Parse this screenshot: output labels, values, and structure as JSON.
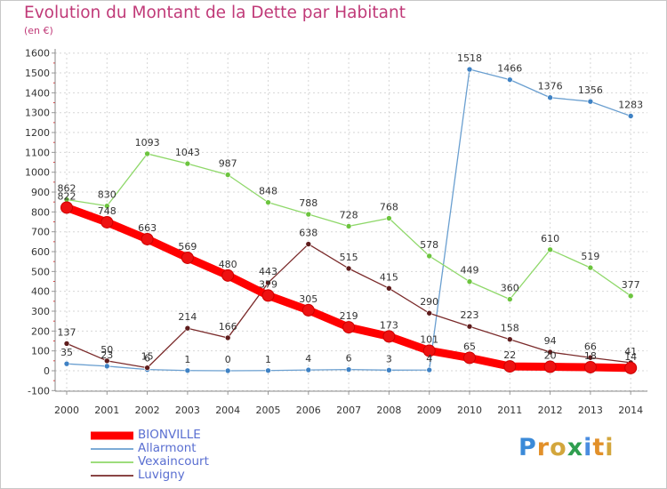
{
  "title": "Evolution du Montant de la Dette par Habitant",
  "subtitle": "(en €)",
  "logo": {
    "letters": [
      "P",
      "r",
      "o",
      "x",
      "i",
      "t",
      "i"
    ],
    "colors": [
      "#3b8ad8",
      "#e2902a",
      "#d3a63c",
      "#2f9e4f",
      "#4a8de0",
      "#e2902a",
      "#d3a63c"
    ]
  },
  "chart_data": {
    "type": "line",
    "categories": [
      "2000",
      "2001",
      "2002",
      "2003",
      "2004",
      "2005",
      "2006",
      "2007",
      "2008",
      "2009",
      "2010",
      "2011",
      "2012",
      "2013",
      "2014"
    ],
    "y_ticks": [
      -100,
      0,
      100,
      200,
      300,
      400,
      500,
      600,
      700,
      800,
      900,
      1000,
      1100,
      1200,
      1300,
      1400,
      1500,
      1600
    ],
    "ylim": [
      -100,
      1600
    ],
    "grid": true,
    "legend_position": "bottom-left",
    "series": [
      {
        "name": "BIONVILLE",
        "color": "#ff0000",
        "marker_color": "#ee1111",
        "values": [
          822,
          748,
          663,
          569,
          480,
          379,
          305,
          219,
          173,
          101,
          65,
          22,
          20,
          18,
          14
        ],
        "labels": [
          "822",
          "748",
          "663",
          "569",
          "480",
          "379",
          "305",
          "219",
          "173",
          "101",
          "65",
          "22",
          "20",
          "18",
          "14"
        ]
      },
      {
        "name": "Allarmont",
        "color": "#6a9fd0",
        "marker_color": "#3f82c4",
        "values": [
          35,
          23,
          6,
          1,
          0,
          1,
          4,
          6,
          3,
          4,
          1518,
          1466,
          1376,
          1356,
          1283
        ],
        "labels": [
          "35",
          "23",
          "6",
          "1",
          "0",
          "1",
          "4",
          "6",
          "3",
          "4",
          "1518",
          "1466",
          "1376",
          "1356",
          "1283"
        ]
      },
      {
        "name": "Vexaincourt",
        "color": "#8fd86a",
        "marker_color": "#6cc43e",
        "values": [
          862,
          830,
          1093,
          1043,
          987,
          848,
          788,
          728,
          768,
          578,
          449,
          360,
          610,
          519,
          377
        ],
        "labels": [
          "862",
          "830",
          "1093",
          "1043",
          "987",
          "848",
          "788",
          "728",
          "768",
          "578",
          "449",
          "360",
          "610",
          "519",
          "377"
        ]
      },
      {
        "name": "Luvigny",
        "color": "#7a2a2a",
        "marker_color": "#5e1c1c",
        "values": [
          137,
          50,
          15,
          214,
          166,
          443,
          638,
          515,
          415,
          290,
          223,
          158,
          94,
          66,
          41
        ],
        "labels": [
          "137",
          "50",
          "15",
          "214",
          "166",
          "443",
          "638",
          "515",
          "415",
          "290",
          "223",
          "158",
          "94",
          "66",
          "41"
        ]
      }
    ]
  }
}
